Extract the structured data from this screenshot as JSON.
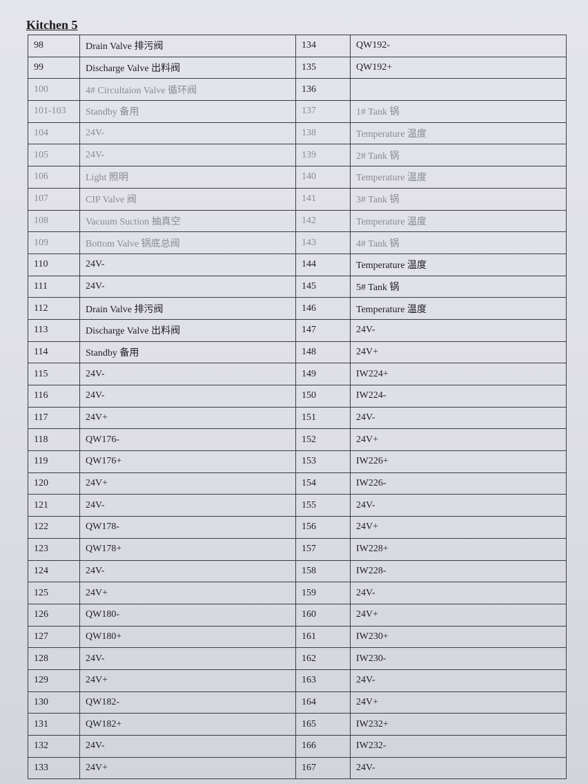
{
  "title": "Kitchen 5",
  "rows": [
    {
      "left_no": "98",
      "left_desc": "Drain Valve 排污阀",
      "right_no": "134",
      "right_desc": "QW192-"
    },
    {
      "left_no": "99",
      "left_desc": "Discharge Valve 出料阀",
      "right_no": "135",
      "right_desc": "QW192+"
    },
    {
      "left_no": "100",
      "left_desc": "4# Circultaion Valve 循环阀",
      "right_no": "136",
      "right_desc": ""
    },
    {
      "left_no": "101-103",
      "left_desc": "Standby 备用",
      "right_no": "137",
      "right_desc": "1# Tank 锅"
    },
    {
      "left_no": "104",
      "left_desc": "24V-",
      "right_no": "138",
      "right_desc": "Temperature 温度"
    },
    {
      "left_no": "105",
      "left_desc": "24V-",
      "right_no": "139",
      "right_desc": "2# Tank 锅"
    },
    {
      "left_no": "106",
      "left_desc": "Light 照明",
      "right_no": "140",
      "right_desc": "Temperature 温度"
    },
    {
      "left_no": "107",
      "left_desc": "CIP Valve 阀",
      "right_no": "141",
      "right_desc": "3# Tank 锅"
    },
    {
      "left_no": "108",
      "left_desc": "Vacuum Suction 抽真空",
      "right_no": "142",
      "right_desc": "Temperature 温度"
    },
    {
      "left_no": "109",
      "left_desc": "Bottom Valve 锅底总阀",
      "right_no": "143",
      "right_desc": "4# Tank 锅"
    },
    {
      "left_no": "110",
      "left_desc": "24V-",
      "right_no": "144",
      "right_desc": "Temperature 温度"
    },
    {
      "left_no": "111",
      "left_desc": "24V-",
      "right_no": "145",
      "right_desc": "5# Tank 锅"
    },
    {
      "left_no": "112",
      "left_desc": "Drain Valve 排污阀",
      "right_no": "146",
      "right_desc": "Temperature 温度"
    },
    {
      "left_no": "113",
      "left_desc": "Discharge Valve 出料阀",
      "right_no": "147",
      "right_desc": "24V-"
    },
    {
      "left_no": "114",
      "left_desc": "Standby 备用",
      "right_no": "148",
      "right_desc": "24V+"
    },
    {
      "left_no": "115",
      "left_desc": "24V-",
      "right_no": "149",
      "right_desc": "IW224+"
    },
    {
      "left_no": "116",
      "left_desc": "24V-",
      "right_no": "150",
      "right_desc": "IW224-"
    },
    {
      "left_no": "117",
      "left_desc": "24V+",
      "right_no": "151",
      "right_desc": "24V-"
    },
    {
      "left_no": "118",
      "left_desc": "QW176-",
      "right_no": "152",
      "right_desc": "24V+"
    },
    {
      "left_no": "119",
      "left_desc": "QW176+",
      "right_no": "153",
      "right_desc": "IW226+"
    },
    {
      "left_no": "120",
      "left_desc": "24V+",
      "right_no": "154",
      "right_desc": "IW226-"
    },
    {
      "left_no": "121",
      "left_desc": "24V-",
      "right_no": "155",
      "right_desc": "24V-"
    },
    {
      "left_no": "122",
      "left_desc": "QW178-",
      "right_no": "156",
      "right_desc": "24V+"
    },
    {
      "left_no": "123",
      "left_desc": "QW178+",
      "right_no": "157",
      "right_desc": "IW228+"
    },
    {
      "left_no": "124",
      "left_desc": "24V-",
      "right_no": "158",
      "right_desc": "IW228-"
    },
    {
      "left_no": "125",
      "left_desc": "24V+",
      "right_no": "159",
      "right_desc": "24V-"
    },
    {
      "left_no": "126",
      "left_desc": "QW180-",
      "right_no": "160",
      "right_desc": "24V+"
    },
    {
      "left_no": "127",
      "left_desc": "QW180+",
      "right_no": "161",
      "right_desc": "IW230+"
    },
    {
      "left_no": "128",
      "left_desc": "24V-",
      "right_no": "162",
      "right_desc": "IW230-"
    },
    {
      "left_no": "129",
      "left_desc": "24V+",
      "right_no": "163",
      "right_desc": "24V-"
    },
    {
      "left_no": "130",
      "left_desc": "QW182-",
      "right_no": "164",
      "right_desc": "24V+"
    },
    {
      "left_no": "131",
      "left_desc": "QW182+",
      "right_no": "165",
      "right_desc": "IW232+"
    },
    {
      "left_no": "132",
      "left_desc": "24V-",
      "right_no": "166",
      "right_desc": "IW232-"
    },
    {
      "left_no": "133",
      "left_desc": "24V+",
      "right_no": "167",
      "right_desc": "24V-"
    }
  ]
}
